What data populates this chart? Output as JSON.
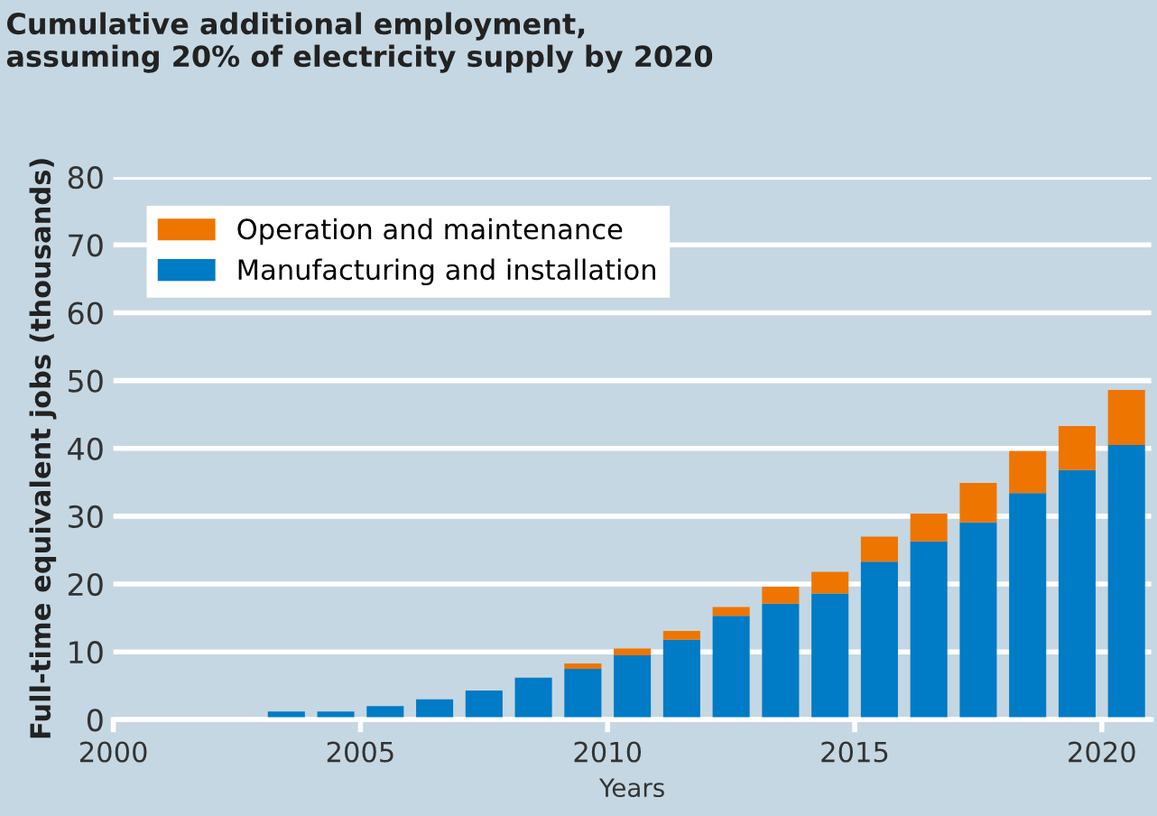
{
  "chart_data": {
    "type": "bar",
    "stacked": true,
    "title": "Cumulative additional employment,\nassuming 20% of electricity supply by 2020",
    "xlabel": "Years",
    "ylabel": "Full-time equivalent jobs (thousands)",
    "x": [
      2003.5,
      2004.5,
      2005.5,
      2006.5,
      2007.5,
      2008.5,
      2009.5,
      2010.5,
      2011.5,
      2012.5,
      2013.5,
      2014.5,
      2015.5,
      2016.5,
      2017.5,
      2018.5,
      2019.5,
      2020.5
    ],
    "series": [
      {
        "name": "Manufacturing and installation",
        "color": "#007bc5",
        "values": [
          1.2,
          1.2,
          2.0,
          3.0,
          4.3,
          6.2,
          7.5,
          9.5,
          11.8,
          15.3,
          17.1,
          18.6,
          23.3,
          26.3,
          29.1,
          33.4,
          36.8,
          40.5
        ]
      },
      {
        "name": "Operation and maintenance",
        "color": "#ee7500",
        "values": [
          null,
          null,
          null,
          null,
          null,
          null,
          0.8,
          1.0,
          1.3,
          1.3,
          2.5,
          3.2,
          3.7,
          4.1,
          5.8,
          6.2,
          6.5,
          8.1
        ]
      }
    ],
    "xlim": [
      2000,
      2021
    ],
    "xticks": [
      2000,
      2005,
      2010,
      2015,
      2020
    ],
    "ylim": [
      0,
      80
    ],
    "yticks": [
      0,
      10,
      20,
      30,
      40,
      50,
      60,
      70,
      80
    ],
    "grid": "y",
    "legend": "top left"
  }
}
